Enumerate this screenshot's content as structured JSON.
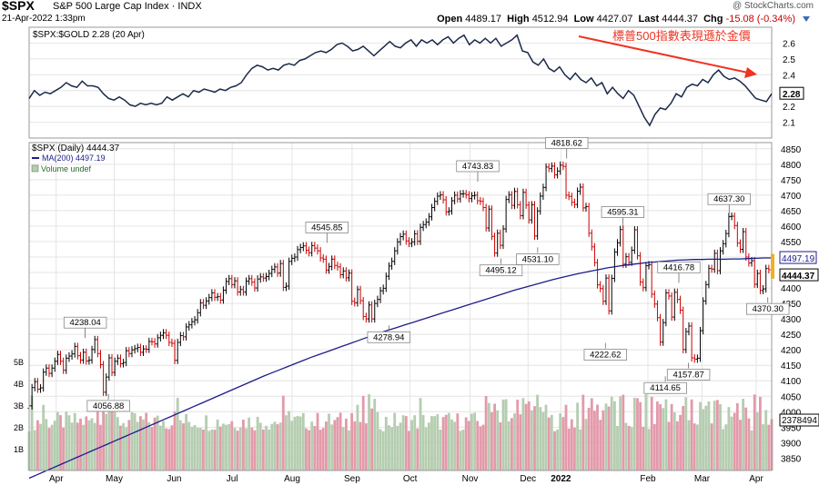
{
  "header": {
    "symbol": "$SPX",
    "name": "S&P 500 Large Cap Index",
    "exchange": "INDX",
    "watermark": "@ StockCharts.com",
    "date": "21-Apr-2022 1:33pm",
    "open_label": "Open",
    "open": "4489.17",
    "high_label": "High",
    "high": "4512.94",
    "low_label": "Low",
    "low": "4427.07",
    "last_label": "Last",
    "last": "4444.37",
    "chg_label": "Chg",
    "chg": "-15.08 (-0.34%)"
  },
  "colors": {
    "up": "#000000",
    "down": "#cc0000",
    "ma": "#1c1c8c",
    "ratio": "#1a2a4a",
    "vol_up": "#b5cdb0",
    "vol_down": "#e39aaa",
    "annotation": "#ee3322",
    "grid": "#e4e4e4"
  },
  "chart_data": [
    {
      "type": "line",
      "legend": "$SPX:$GOLD 2.28 (20 Apr)",
      "annotation": "標普500指數表現遜於金價",
      "last_value_label": "2.28",
      "ylim": [
        2.0,
        2.7
      ],
      "y_ticks": [
        2.1,
        2.2,
        2.3,
        2.4,
        2.5,
        2.6
      ],
      "x_start": "2021-04-01",
      "x_end": "2022-04-20",
      "series": [
        {
          "values": [
            2.25,
            2.3,
            2.27,
            2.29,
            2.28,
            2.3,
            2.32,
            2.35,
            2.33,
            2.32,
            2.36,
            2.33,
            2.33,
            2.32,
            2.28,
            2.25,
            2.24,
            2.26,
            2.24,
            2.21,
            2.2,
            2.22,
            2.21,
            2.22,
            2.21,
            2.22,
            2.26,
            2.24,
            2.26,
            2.28,
            2.26,
            2.3,
            2.29,
            2.31,
            2.3,
            2.29,
            2.31,
            2.3,
            2.32,
            2.33,
            2.35,
            2.4,
            2.44,
            2.46,
            2.45,
            2.43,
            2.44,
            2.43,
            2.46,
            2.47,
            2.46,
            2.49,
            2.5,
            2.52,
            2.54,
            2.55,
            2.54,
            2.56,
            2.59,
            2.6,
            2.58,
            2.55,
            2.56,
            2.58,
            2.55,
            2.52,
            2.55,
            2.58,
            2.61,
            2.58,
            2.57,
            2.6,
            2.62,
            2.58,
            2.62,
            2.6,
            2.62,
            2.59,
            2.62,
            2.64,
            2.6,
            2.63,
            2.65,
            2.59,
            2.62,
            2.6,
            2.63,
            2.6,
            2.63,
            2.58,
            2.6,
            2.62,
            2.65,
            2.55,
            2.54,
            2.48,
            2.46,
            2.5,
            2.44,
            2.42,
            2.45,
            2.4,
            2.37,
            2.41,
            2.37,
            2.35,
            2.38,
            2.33,
            2.35,
            2.28,
            2.32,
            2.28,
            2.25,
            2.3,
            2.27,
            2.2,
            2.13,
            2.08,
            2.15,
            2.19,
            2.18,
            2.22,
            2.28,
            2.26,
            2.32,
            2.34,
            2.33,
            2.37,
            2.35,
            2.4,
            2.43,
            2.39,
            2.37,
            2.38,
            2.36,
            2.33,
            2.29,
            2.25,
            2.24,
            2.23,
            2.28
          ]
        }
      ]
    },
    {
      "type": "line",
      "legend_price": "$SPX (Daily) 4444.37",
      "legend_ma": "MA(200) 4497.19",
      "legend_volume": "Volume undef",
      "ylim": [
        3810,
        4870
      ],
      "y_ticks": [
        3850,
        3900,
        3950,
        4000,
        4050,
        4100,
        4150,
        4200,
        4250,
        4300,
        4350,
        4400,
        4450,
        4500,
        4550,
        4600,
        4650,
        4700,
        4750,
        4800,
        4850
      ],
      "volume_ticks": [
        "1B",
        "2B",
        "3B",
        "4B",
        "5B"
      ],
      "volume_label": "2378494",
      "ma_value_label": "4497.19",
      "price_value_label": "4444.37",
      "x_labels": [
        "Apr",
        "May",
        "Jun",
        "Jul",
        "Aug",
        "Sep",
        "Oct",
        "Nov",
        "Dec",
        "2022",
        "Feb",
        "Mar",
        "Apr"
      ],
      "x_start": "2021-04-01",
      "x_end": "2022-04-20",
      "close_series": {
        "name": "$SPX",
        "values": [
          4019,
          4078,
          4097,
          4073,
          4077,
          4128,
          4141,
          4124,
          4141,
          4163,
          4185,
          4163,
          4134,
          4173,
          4180,
          4187,
          4211,
          4181,
          4167,
          4192,
          4164,
          4167,
          4201,
          4233,
          4188,
          4152,
          4063,
          4112,
          4174,
          4127,
          4163,
          4173,
          4155,
          4159,
          4197,
          4188,
          4200,
          4204,
          4208,
          4192,
          4203,
          4202,
          4227,
          4226,
          4219,
          4239,
          4247,
          4255,
          4247,
          4224,
          4221,
          4166,
          4224,
          4246,
          4242,
          4274,
          4281,
          4291,
          4297,
          4320,
          4352,
          4344,
          4358,
          4369,
          4384,
          4370,
          4372,
          4361,
          4393,
          4421,
          4430,
          4411,
          4423,
          4387,
          4395,
          4387,
          4422,
          4430,
          4419,
          4400,
          4429,
          4436,
          4432,
          4437,
          4447,
          4460,
          4468,
          4448,
          4479,
          4402,
          4406,
          4486,
          4496,
          4500,
          4524,
          4531,
          4536,
          4522,
          4514,
          4537,
          4529,
          4520,
          4497,
          4493,
          4458,
          4469,
          4493,
          4473,
          4468,
          4443,
          4455,
          4433,
          4448,
          4357,
          4352,
          4395,
          4359,
          4308,
          4300,
          4345,
          4300,
          4350,
          4363,
          4391,
          4399,
          4438,
          4471,
          4486,
          4520,
          4549,
          4566,
          4574,
          4552,
          4544,
          4549,
          4575,
          4551,
          4596,
          4605,
          4613,
          4630,
          4660,
          4680,
          4697,
          4701,
          4685,
          4646,
          4649,
          4682,
          4700,
          4688,
          4704,
          4705,
          4701,
          4689,
          4698,
          4700,
          4682,
          4680,
          4660,
          4594,
          4655,
          4567,
          4513,
          4577,
          4538,
          4591,
          4686,
          4701,
          4667,
          4712,
          4669,
          4634,
          4709,
          4668,
          4620,
          4669,
          4568,
          4649,
          4697,
          4725,
          4791,
          4786,
          4794,
          4766,
          4778,
          4797,
          4793,
          4700,
          4696,
          4677,
          4670,
          4713,
          4726,
          4659,
          4663,
          4577,
          4533,
          4482,
          4410,
          4398,
          4357,
          4432,
          4326,
          4431,
          4516,
          4546,
          4589,
          4477,
          4501,
          4483,
          4522,
          4588,
          4504,
          4419,
          4401,
          4472,
          4475,
          4380,
          4348,
          4304,
          4225,
          4288,
          4384,
          4374,
          4306,
          4386,
          4363,
          4328,
          4201,
          4259,
          4277,
          4174,
          4170,
          4173,
          4262,
          4358,
          4411,
          4463,
          4461,
          4512,
          4456,
          4520,
          4543,
          4576,
          4631,
          4632,
          4602,
          4545,
          4525,
          4582,
          4500,
          4481,
          4488,
          4412,
          4447,
          4392,
          4397,
          4463,
          4459,
          4444
        ]
      },
      "ma_series": {
        "name": "MA(200)",
        "values": [
          3785,
          3796,
          3807,
          3818,
          3829,
          3840,
          3851,
          3862,
          3873,
          3884,
          3895,
          3906,
          3917,
          3928,
          3939,
          3950,
          3961,
          3972,
          3983,
          3994,
          4005,
          4016,
          4027,
          4038,
          4049,
          4060,
          4071,
          4082,
          4093,
          4104,
          4115,
          4125,
          4135,
          4145,
          4155,
          4165,
          4175,
          4184,
          4193,
          4202,
          4211,
          4220,
          4229,
          4238,
          4247,
          4256,
          4264,
          4272,
          4280,
          4288,
          4296,
          4304,
          4312,
          4320,
          4328,
          4336,
          4344,
          4352,
          4360,
          4368,
          4376,
          4384,
          4392,
          4399,
          4406,
          4413,
          4420,
          4427,
          4433,
          4439,
          4445,
          4450,
          4455,
          4460,
          4465,
          4469,
          4473,
          4476,
          4479,
          4482,
          4484,
          4486,
          4488,
          4490,
          4491,
          4492,
          4492,
          4493,
          4493,
          4493,
          4494,
          4494,
          4495,
          4496,
          4497,
          4497
        ]
      },
      "labels": [
        {
          "date": "2021-04-30",
          "value": "4238.04",
          "pos": "above"
        },
        {
          "date": "2021-05-12",
          "value": "4056.88",
          "pos": "below"
        },
        {
          "date": "2021-09-02",
          "value": "4545.85",
          "pos": "above"
        },
        {
          "date": "2021-10-04",
          "value": "4278.94",
          "pos": "below"
        },
        {
          "date": "2021-11-19",
          "value": "4743.83",
          "pos": "above"
        },
        {
          "date": "2021-12-01",
          "value": "4495.12",
          "pos": "below"
        },
        {
          "date": "2021-12-20",
          "value": "4531.10",
          "pos": "below"
        },
        {
          "date": "2022-01-04",
          "value": "4818.62",
          "pos": "above"
        },
        {
          "date": "2022-01-24",
          "value": "4222.62",
          "pos": "below"
        },
        {
          "date": "2022-02-02",
          "value": "4595.31",
          "pos": "above"
        },
        {
          "date": "2022-02-24",
          "value": "4114.65",
          "pos": "below"
        },
        {
          "date": "2022-03-08",
          "value": "4157.87",
          "pos": "below"
        },
        {
          "date": "2022-03-03",
          "value": "4416.78",
          "pos": "above"
        },
        {
          "date": "2022-03-29",
          "value": "4637.30",
          "pos": "above"
        },
        {
          "date": "2022-04-18",
          "value": "4370.30",
          "pos": "below"
        }
      ]
    }
  ]
}
